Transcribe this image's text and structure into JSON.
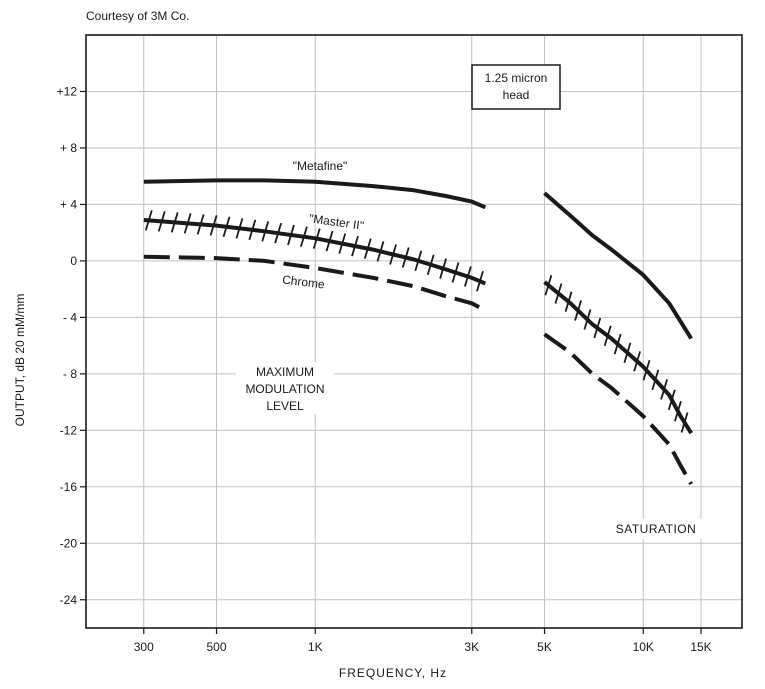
{
  "credit": "Courtesy of 3M Co.",
  "chart_data": {
    "type": "line",
    "xlabel": "FREQUENCY, Hz",
    "ylabel": "OUTPUT, dB 20 mM/mm",
    "x_scale": "log",
    "xlim": [
      200,
      20000
    ],
    "ylim": [
      -26,
      16
    ],
    "x_ticks": [
      {
        "value": 300,
        "label": "300"
      },
      {
        "value": 500,
        "label": "500"
      },
      {
        "value": 1000,
        "label": "1K"
      },
      {
        "value": 3000,
        "label": "3K"
      },
      {
        "value": 5000,
        "label": "5K"
      },
      {
        "value": 10000,
        "label": "10K"
      },
      {
        "value": 15000,
        "label": "15K"
      }
    ],
    "y_ticks": [
      {
        "value": 12,
        "label": "+12"
      },
      {
        "value": 8,
        "label": "+ 8"
      },
      {
        "value": 4,
        "label": "+ 4"
      },
      {
        "value": 0,
        "label": "0"
      },
      {
        "value": -4,
        "label": "- 4"
      },
      {
        "value": -8,
        "label": "- 8"
      },
      {
        "value": -12,
        "label": "-12"
      },
      {
        "value": -16,
        "label": "-16"
      },
      {
        "value": -20,
        "label": "-20"
      },
      {
        "value": -24,
        "label": "-24"
      }
    ],
    "grid": true,
    "annotations": {
      "head_box": "1.25 micron head",
      "max_mod_level": [
        "MAXIMUM",
        "MODULATION",
        "LEVEL"
      ],
      "saturation": "SATURATION"
    },
    "series": [
      {
        "name": "\"Metafine\"",
        "style": "solid",
        "group": "max_mod",
        "x": [
          300,
          500,
          700,
          1000,
          1500,
          2000,
          2500,
          3000,
          3300
        ],
        "y": [
          5.6,
          5.7,
          5.7,
          5.6,
          5.3,
          5.0,
          4.6,
          4.2,
          3.8
        ]
      },
      {
        "name": "\"Master II\"",
        "style": "hatched",
        "group": "max_mod",
        "x": [
          300,
          500,
          700,
          1000,
          1500,
          2000,
          2500,
          3000,
          3300
        ],
        "y": [
          2.9,
          2.5,
          2.1,
          1.6,
          0.8,
          0.1,
          -0.6,
          -1.2,
          -1.6
        ]
      },
      {
        "name": "Chrome",
        "style": "dashed",
        "group": "max_mod",
        "x": [
          300,
          500,
          700,
          1000,
          1500,
          2000,
          2500,
          3000,
          3300
        ],
        "y": [
          0.3,
          0.2,
          0.0,
          -0.5,
          -1.2,
          -1.8,
          -2.5,
          -3.0,
          -3.5
        ]
      },
      {
        "name": "",
        "style": "solid",
        "group": "saturation",
        "x": [
          5000,
          6000,
          7000,
          8000,
          10000,
          12000,
          14000
        ],
        "y": [
          4.8,
          3.2,
          1.8,
          0.8,
          -1.0,
          -3.0,
          -5.5
        ]
      },
      {
        "name": "",
        "style": "hatched",
        "group": "saturation",
        "x": [
          5000,
          6000,
          7000,
          8000,
          10000,
          12000,
          13000,
          14000
        ],
        "y": [
          -1.5,
          -3.0,
          -4.5,
          -5.5,
          -7.5,
          -9.5,
          -11.0,
          -12.2
        ]
      },
      {
        "name": "",
        "style": "dashed",
        "group": "saturation",
        "x": [
          5000,
          6000,
          7000,
          8000,
          10000,
          12000,
          13000,
          14000
        ],
        "y": [
          -5.2,
          -6.5,
          -8.0,
          -9.0,
          -11.0,
          -13.0,
          -14.5,
          -15.8
        ]
      }
    ]
  }
}
